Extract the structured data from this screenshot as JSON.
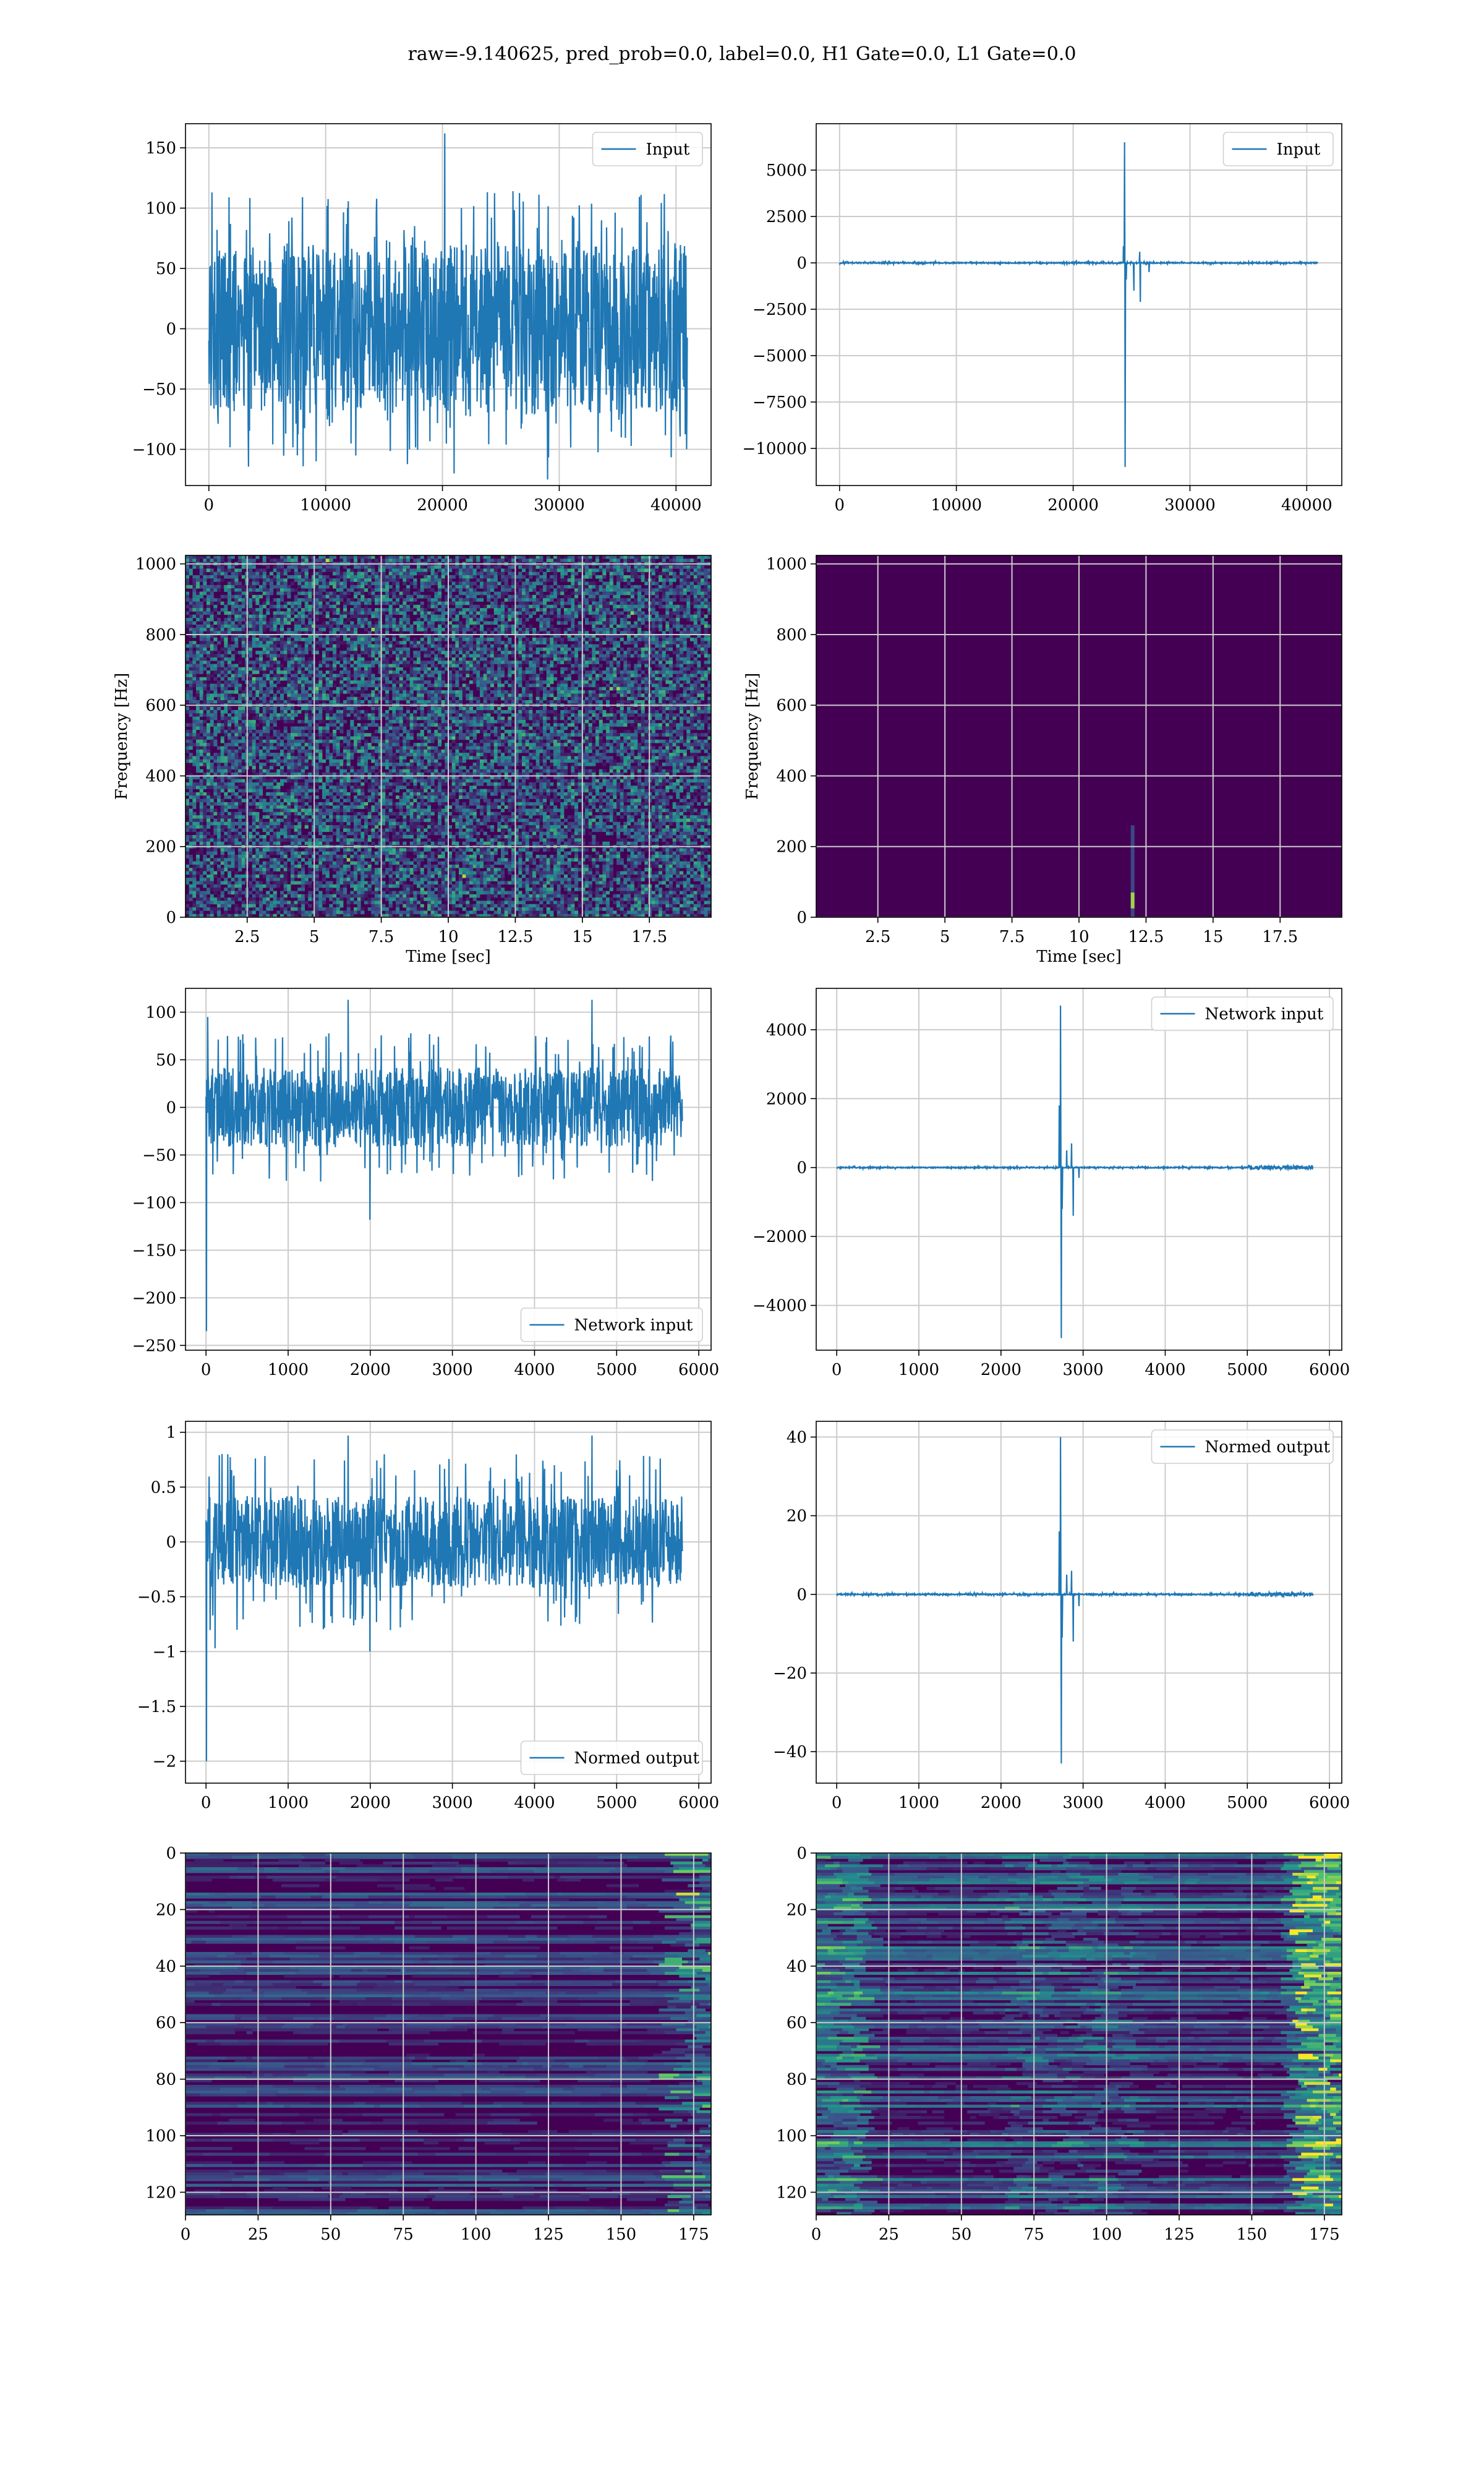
{
  "figure": {
    "suptitle": "raw=-9.140625, pred_prob=0.0, label=0.0, H1 Gate=0.0, L1 Gate=0.0"
  },
  "colors": {
    "line": "#1f77b4",
    "grid": "#cccccc",
    "viridis_low": "#440154",
    "viridis_mid": "#21918c",
    "viridis_high": "#fde725"
  },
  "chart_data": [
    {
      "id": "r1c1",
      "type": "line",
      "row": 0,
      "col": 0,
      "legend": "Input",
      "legend_loc": "upper-right",
      "xlim": [
        -2000,
        43000
      ],
      "ylim": [
        -130,
        170
      ],
      "xticks": [
        0,
        10000,
        20000,
        30000,
        40000
      ],
      "yticks": [
        -100,
        -50,
        0,
        50,
        100,
        150
      ],
      "signal": {
        "x_end": 40960,
        "noise_amp": 70,
        "peak_amp": 100,
        "spikes": [
          [
            20200,
            162
          ],
          [
            21000,
            -120
          ],
          [
            29000,
            -125
          ],
          [
            37000,
            111
          ]
        ]
      }
    },
    {
      "id": "r1c2",
      "type": "line",
      "row": 0,
      "col": 1,
      "legend": "Input",
      "legend_loc": "upper-right",
      "xlim": [
        -2000,
        43000
      ],
      "ylim": [
        -12000,
        7500
      ],
      "xticks": [
        0,
        10000,
        20000,
        30000,
        40000
      ],
      "yticks": [
        -10000,
        -7500,
        -5000,
        -2500,
        0,
        2500,
        5000
      ],
      "signal": {
        "x_end": 40960,
        "noise_amp": 30,
        "peak_amp": 60,
        "spikes": [
          [
            24400,
            6500
          ],
          [
            24450,
            -11000
          ],
          [
            24300,
            900
          ],
          [
            24550,
            -900
          ],
          [
            25200,
            -1500
          ],
          [
            25700,
            600
          ],
          [
            25750,
            -2100
          ],
          [
            26500,
            -500
          ]
        ]
      }
    },
    {
      "id": "r2c1",
      "type": "heatmap",
      "row": 1,
      "col": 0,
      "xlabel": "Time [sec]",
      "ylabel": "Frequency [Hz]",
      "xlim": [
        0.2,
        19.8
      ],
      "ylim": [
        0,
        1024
      ],
      "xticks": [
        2.5,
        5.0,
        7.5,
        10.0,
        12.5,
        15.0,
        17.5
      ],
      "yticks": [
        0,
        200,
        400,
        600,
        800,
        1000
      ],
      "grid": true,
      "colormap": "viridis",
      "pattern": "noise"
    },
    {
      "id": "r2c2",
      "type": "heatmap",
      "row": 1,
      "col": 1,
      "xlabel": "Time [sec]",
      "ylabel": "Frequency [Hz]",
      "xlim": [
        0.2,
        19.8
      ],
      "ylim": [
        0,
        1024
      ],
      "xticks": [
        2.5,
        5.0,
        7.5,
        10.0,
        12.5,
        15.0,
        17.5
      ],
      "yticks": [
        0,
        200,
        400,
        600,
        800,
        1000
      ],
      "grid": true,
      "colormap": "viridis",
      "pattern": "glitch",
      "glitch_time": 12.0
    },
    {
      "id": "r3c1",
      "type": "line",
      "row": 2,
      "col": 0,
      "legend": "Network input",
      "legend_loc": "lower-right",
      "xlim": [
        -250,
        6150
      ],
      "ylim": [
        -255,
        125
      ],
      "xticks": [
        0,
        1000,
        2000,
        3000,
        4000,
        5000,
        6000
      ],
      "yticks": [
        -250,
        -200,
        -150,
        -100,
        -50,
        0,
        50,
        100
      ],
      "signal": {
        "x_end": 5800,
        "noise_amp": 42,
        "peak_amp": 68,
        "spikes": [
          [
            5,
            -235
          ],
          [
            20,
            95
          ],
          [
            1730,
            113
          ],
          [
            1995,
            -118
          ],
          [
            4700,
            113
          ]
        ]
      }
    },
    {
      "id": "r3c2",
      "type": "line",
      "row": 2,
      "col": 1,
      "legend": "Network input",
      "legend_loc": "upper-right",
      "xlim": [
        -250,
        6150
      ],
      "ylim": [
        -5300,
        5200
      ],
      "xticks": [
        0,
        1000,
        2000,
        3000,
        4000,
        5000,
        6000
      ],
      "yticks": [
        -4000,
        -2000,
        0,
        2000,
        4000
      ],
      "signal": {
        "x_end": 5800,
        "noise_amp": 15,
        "peak_amp": 30,
        "tail_noise": [
          5000,
          5800,
          55
        ],
        "spikes": [
          [
            2725,
            4700
          ],
          [
            2735,
            -4950
          ],
          [
            2710,
            1800
          ],
          [
            2745,
            -1200
          ],
          [
            2800,
            500
          ],
          [
            2860,
            700
          ],
          [
            2880,
            -1400
          ],
          [
            2950,
            -300
          ]
        ]
      }
    },
    {
      "id": "r4c1",
      "type": "line",
      "row": 3,
      "col": 0,
      "legend": "Normed output",
      "legend_loc": "lower-right",
      "xlim": [
        -250,
        6150
      ],
      "ylim": [
        -2.2,
        1.1
      ],
      "xticks": [
        0,
        1000,
        2000,
        3000,
        4000,
        5000,
        6000
      ],
      "yticks": [
        -2.0,
        -1.5,
        -1.0,
        -0.5,
        0.0,
        0.5,
        1.0
      ],
      "signal": {
        "x_end": 5800,
        "noise_amp": 0.42,
        "peak_amp": 0.7,
        "spikes": [
          [
            5,
            -2.0
          ],
          [
            1730,
            0.97
          ],
          [
            1995,
            -1.0
          ],
          [
            4700,
            0.97
          ],
          [
            110,
            -0.97
          ]
        ]
      }
    },
    {
      "id": "r4c2",
      "type": "line",
      "row": 3,
      "col": 1,
      "legend": "Normed output",
      "legend_loc": "upper-right",
      "xlim": [
        -250,
        6150
      ],
      "ylim": [
        -48,
        44
      ],
      "xticks": [
        0,
        1000,
        2000,
        3000,
        4000,
        5000,
        6000
      ],
      "yticks": [
        -40,
        -20,
        0,
        20,
        40
      ],
      "signal": {
        "x_end": 5800,
        "noise_amp": 0.15,
        "peak_amp": 0.3,
        "tail_noise": [
          5000,
          5800,
          0.5
        ],
        "spikes": [
          [
            2725,
            40
          ],
          [
            2735,
            -43
          ],
          [
            2710,
            16
          ],
          [
            2745,
            -11
          ],
          [
            2800,
            5
          ],
          [
            2860,
            6
          ],
          [
            2880,
            -12
          ],
          [
            2950,
            -3
          ]
        ]
      }
    },
    {
      "id": "r5c1",
      "type": "heatmap",
      "row": 4,
      "col": 0,
      "xlim": [
        0,
        181
      ],
      "ylim": [
        128,
        0
      ],
      "xticks": [
        0,
        25,
        50,
        75,
        100,
        125,
        150,
        175
      ],
      "yticks": [
        0,
        20,
        40,
        60,
        80,
        100,
        120
      ],
      "grid": true,
      "colormap": "viridis",
      "pattern": "bands"
    },
    {
      "id": "r5c2",
      "type": "heatmap",
      "row": 4,
      "col": 1,
      "xlim": [
        0,
        181
      ],
      "ylim": [
        128,
        0
      ],
      "xticks": [
        0,
        25,
        50,
        75,
        100,
        125,
        150,
        175
      ],
      "yticks": [
        0,
        20,
        40,
        60,
        80,
        100,
        120
      ],
      "grid": true,
      "colormap": "viridis",
      "pattern": "bands-bright"
    }
  ]
}
